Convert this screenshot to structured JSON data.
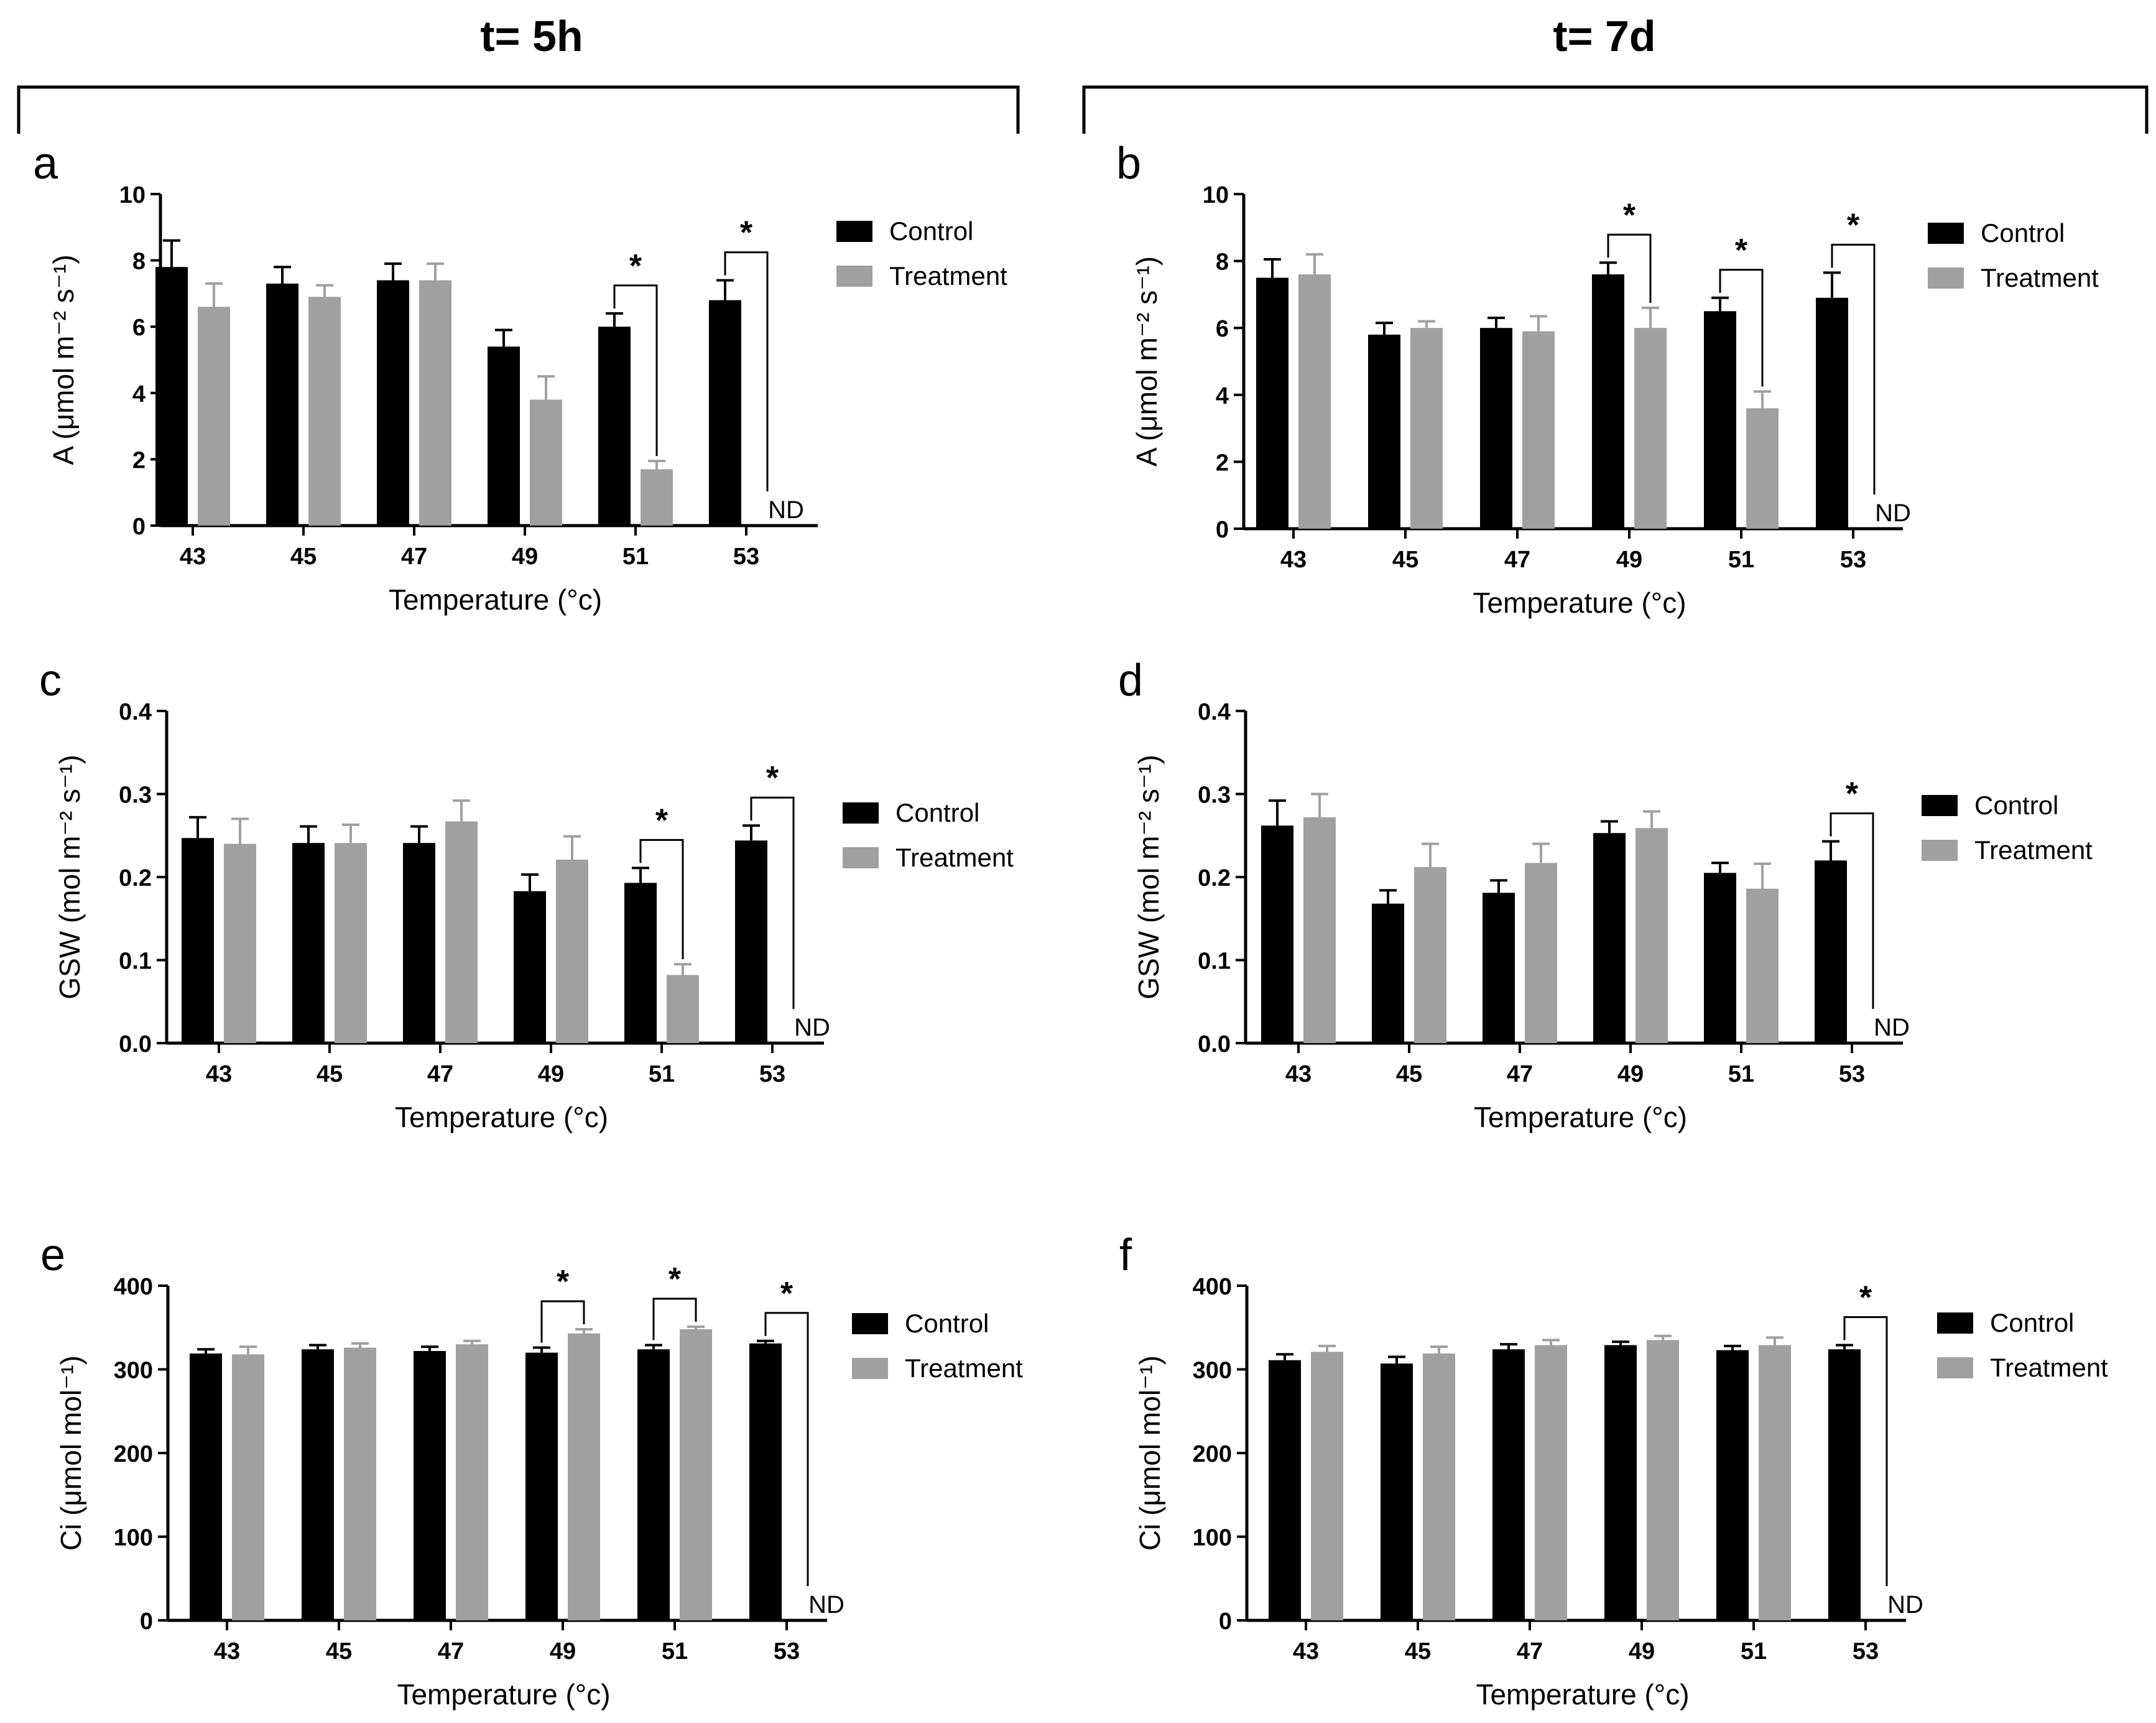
{
  "figure": {
    "timepoints": [
      {
        "label": "t= 5h"
      },
      {
        "label": "t= 7d"
      }
    ],
    "legend": {
      "control": "Control",
      "treatment": "Treatment"
    },
    "colors": {
      "control": "#000000",
      "treatment": "#a0a0a0"
    },
    "significance_marker": "*",
    "not_detected_label": "ND"
  },
  "chart_data": [
    {
      "panel": "a",
      "type": "bar",
      "ylabel": "A (μmol m⁻² s⁻¹)",
      "xlabel": "Temperature (°c)",
      "categories": [
        "43",
        "45",
        "47",
        "49",
        "51",
        "53"
      ],
      "ylim": [
        0,
        10
      ],
      "yticks": [
        "0",
        "2",
        "4",
        "6",
        "8",
        "10"
      ],
      "series": [
        {
          "name": "Control",
          "values": [
            7.8,
            7.3,
            7.4,
            5.4,
            6.0,
            6.8
          ],
          "errors": [
            0.8,
            0.5,
            0.5,
            0.5,
            0.4,
            0.6
          ]
        },
        {
          "name": "Treatment",
          "values": [
            6.6,
            6.9,
            7.4,
            3.8,
            1.7,
            null
          ],
          "errors": [
            0.7,
            0.35,
            0.5,
            0.7,
            0.25,
            null
          ]
        }
      ],
      "significant": [
        "51",
        "53"
      ],
      "not_detected": [
        "53"
      ]
    },
    {
      "panel": "b",
      "type": "bar",
      "ylabel": "A (μmol m⁻² s⁻¹)",
      "xlabel": "Temperature (°c)",
      "categories": [
        "43",
        "45",
        "47",
        "49",
        "51",
        "53"
      ],
      "ylim": [
        0,
        10
      ],
      "yticks": [
        "0",
        "2",
        "4",
        "6",
        "8",
        "10"
      ],
      "series": [
        {
          "name": "Control",
          "values": [
            7.5,
            5.8,
            6.0,
            7.6,
            6.5,
            6.9
          ],
          "errors": [
            0.55,
            0.35,
            0.3,
            0.35,
            0.4,
            0.75
          ]
        },
        {
          "name": "Treatment",
          "values": [
            7.6,
            6.0,
            5.9,
            6.0,
            3.6,
            null
          ],
          "errors": [
            0.6,
            0.2,
            0.45,
            0.6,
            0.5,
            null
          ]
        }
      ],
      "significant": [
        "49",
        "51",
        "53"
      ],
      "not_detected": [
        "53"
      ]
    },
    {
      "panel": "c",
      "type": "bar",
      "ylabel": "GSW (mol m⁻² s⁻¹)",
      "xlabel": "Temperature (°c)",
      "categories": [
        "43",
        "45",
        "47",
        "49",
        "51",
        "53"
      ],
      "ylim": [
        0,
        0.4
      ],
      "yticks": [
        "0.0",
        "0.1",
        "0.2",
        "0.3",
        "0.4"
      ],
      "series": [
        {
          "name": "Control",
          "values": [
            0.247,
            0.241,
            0.241,
            0.183,
            0.193,
            0.244
          ],
          "errors": [
            0.025,
            0.02,
            0.02,
            0.02,
            0.018,
            0.018
          ]
        },
        {
          "name": "Treatment",
          "values": [
            0.24,
            0.241,
            0.267,
            0.221,
            0.082,
            null
          ],
          "errors": [
            0.03,
            0.022,
            0.025,
            0.028,
            0.013,
            null
          ]
        }
      ],
      "significant": [
        "51",
        "53"
      ],
      "not_detected": [
        "53"
      ]
    },
    {
      "panel": "d",
      "type": "bar",
      "ylabel": "GSW (mol m⁻² s⁻¹)",
      "xlabel": "Temperature (°c)",
      "categories": [
        "43",
        "45",
        "47",
        "49",
        "51",
        "53"
      ],
      "ylim": [
        0,
        0.4
      ],
      "yticks": [
        "0.0",
        "0.1",
        "0.2",
        "0.3",
        "0.4"
      ],
      "series": [
        {
          "name": "Control",
          "values": [
            0.262,
            0.168,
            0.181,
            0.253,
            0.205,
            0.22
          ],
          "errors": [
            0.03,
            0.016,
            0.015,
            0.014,
            0.012,
            0.023
          ]
        },
        {
          "name": "Treatment",
          "values": [
            0.272,
            0.212,
            0.217,
            0.259,
            0.186,
            null
          ],
          "errors": [
            0.028,
            0.028,
            0.023,
            0.02,
            0.03,
            null
          ]
        }
      ],
      "significant": [
        "53"
      ],
      "not_detected": [
        "53"
      ]
    },
    {
      "panel": "e",
      "type": "bar",
      "ylabel": "Ci (μmol mol⁻¹)",
      "xlabel": "Temperature (°c)",
      "categories": [
        "43",
        "45",
        "47",
        "49",
        "51",
        "53"
      ],
      "ylim": [
        0,
        400
      ],
      "yticks": [
        "0",
        "100",
        "200",
        "300",
        "400"
      ],
      "series": [
        {
          "name": "Control",
          "values": [
            319,
            324,
            322,
            320,
            324,
            331
          ],
          "errors": [
            5,
            5,
            5,
            6,
            5,
            3
          ]
        },
        {
          "name": "Treatment",
          "values": [
            318,
            326,
            330,
            343,
            348,
            null
          ],
          "errors": [
            9,
            5,
            4,
            5,
            3,
            null
          ]
        }
      ],
      "significant": [
        "49",
        "51",
        "53"
      ],
      "not_detected": [
        "53"
      ]
    },
    {
      "panel": "f",
      "type": "bar",
      "ylabel": "Ci (μmol mol⁻¹)",
      "xlabel": "Temperature (°c)",
      "categories": [
        "43",
        "45",
        "47",
        "49",
        "51",
        "53"
      ],
      "ylim": [
        0,
        400
      ],
      "yticks": [
        "0",
        "100",
        "200",
        "300",
        "400"
      ],
      "series": [
        {
          "name": "Control",
          "values": [
            311,
            307,
            324,
            329,
            323,
            324
          ],
          "errors": [
            7,
            8,
            6,
            4,
            5,
            5
          ]
        },
        {
          "name": "Treatment",
          "values": [
            321,
            319,
            329,
            335,
            329,
            null
          ],
          "errors": [
            7,
            8,
            6,
            5,
            9,
            null
          ]
        }
      ],
      "significant": [
        "53"
      ],
      "not_detected": [
        "53"
      ]
    }
  ]
}
